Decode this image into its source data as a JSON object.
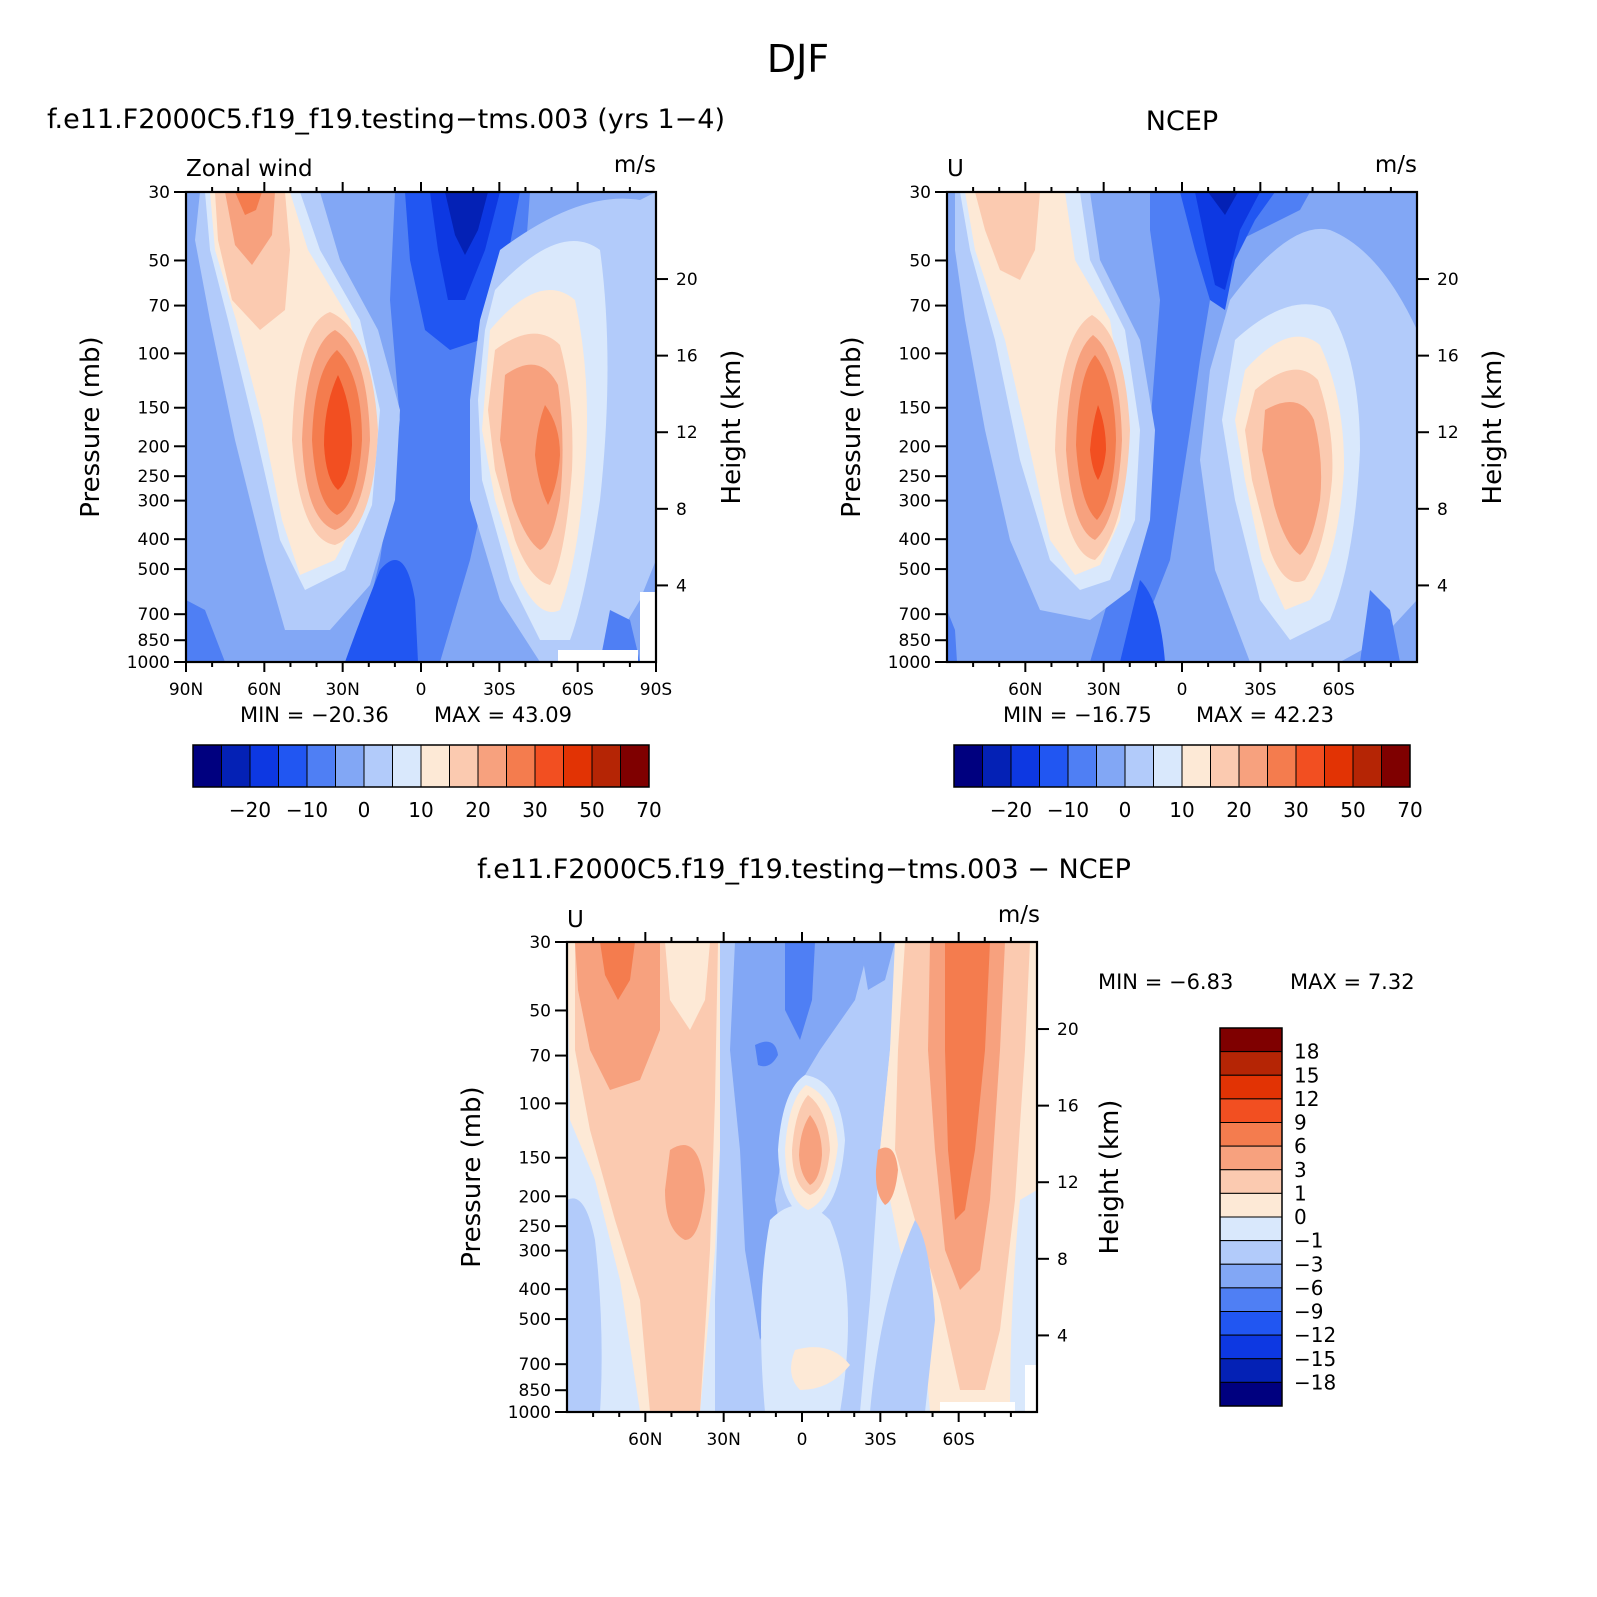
{
  "figure": {
    "title": "DJF"
  },
  "chart_data": [
    {
      "type": "heatmap",
      "panel": "model",
      "title": "f.e11.F2000C5.f19_f19.testing−tms.003 (yrs 1−4)",
      "left_label": "Zonal wind",
      "units": "m/s",
      "ylabel": "Pressure (mb)",
      "ylabel_right": "Height (km)",
      "x_ticklabels": [
        "90N",
        "60N",
        "30N",
        "0",
        "30S",
        "60S",
        "90S"
      ],
      "y_ticklabels": [
        "30",
        "50",
        "70",
        "100",
        "150",
        "200",
        "250",
        "300",
        "400",
        "500",
        "700",
        "850",
        "1000"
      ],
      "height_ticklabels": [
        "20",
        "16",
        "12",
        "8",
        "4"
      ],
      "scale": "log pressure",
      "min_label": "MIN = −20.36",
      "max_label": "MAX = 43.09",
      "min": -20.36,
      "max": 43.09,
      "colorbar_labels": [
        "−20",
        "−10",
        "0",
        "10",
        "20",
        "30",
        "50",
        "70"
      ],
      "colorbar_colors": [
        "#00007f",
        "#0421b5",
        "#0d38e2",
        "#2156f2",
        "#4f7ff4",
        "#82a7f5",
        "#b2cbfa",
        "#d9e8fc",
        "#fde9d6",
        "#fbcab0",
        "#f7a17e",
        "#f47c4e",
        "#f24f21",
        "#e23304",
        "#b52505",
        "#7f0000"
      ],
      "features": [
        {
          "name": "northern subtropical jet maximum",
          "lat": "30N",
          "pressure_mb": 200,
          "value": 43.09
        },
        {
          "name": "southern subtropical jet maximum",
          "lat": "45S",
          "pressure_mb": 200,
          "value": 35
        },
        {
          "name": "equatorial easterlies minimum",
          "lat": "15S",
          "pressure_mb": 30,
          "value": -20.36
        }
      ]
    },
    {
      "type": "heatmap",
      "panel": "obs",
      "title": "NCEP",
      "left_label": "U",
      "units": "m/s",
      "ylabel": "Pressure (mb)",
      "ylabel_right": "Height (km)",
      "x_ticklabels": [
        "60N",
        "30N",
        "0",
        "30S",
        "60S"
      ],
      "y_ticklabels": [
        "30",
        "50",
        "70",
        "100",
        "150",
        "200",
        "250",
        "300",
        "400",
        "500",
        "700",
        "850",
        "1000"
      ],
      "height_ticklabels": [
        "20",
        "16",
        "12",
        "8",
        "4"
      ],
      "scale": "log pressure",
      "min_label": "MIN = −16.75",
      "max_label": "MAX = 42.23",
      "min": -16.75,
      "max": 42.23,
      "colorbar_labels": [
        "−20",
        "−10",
        "0",
        "10",
        "20",
        "30",
        "50",
        "70"
      ],
      "colorbar_colors": [
        "#00007f",
        "#0421b5",
        "#0d38e2",
        "#2156f2",
        "#4f7ff4",
        "#82a7f5",
        "#b2cbfa",
        "#d9e8fc",
        "#fde9d6",
        "#fbcab0",
        "#f7a17e",
        "#f47c4e",
        "#f24f21",
        "#e23304",
        "#b52505",
        "#7f0000"
      ],
      "features": [
        {
          "name": "northern subtropical jet maximum",
          "lat": "30N",
          "pressure_mb": 200,
          "value": 42.23
        },
        {
          "name": "southern subtropical jet maximum",
          "lat": "45S",
          "pressure_mb": 200,
          "value": 30
        },
        {
          "name": "equatorial easterlies minimum",
          "lat": "15S",
          "pressure_mb": 30,
          "value": -16.75
        }
      ]
    },
    {
      "type": "heatmap",
      "panel": "diff",
      "title": "f.e11.F2000C5.f19_f19.testing−tms.003 − NCEP",
      "left_label": "U",
      "units": "m/s",
      "ylabel": "Pressure (mb)",
      "ylabel_right": "Height (km)",
      "x_ticklabels": [
        "60N",
        "30N",
        "0",
        "30S",
        "60S"
      ],
      "y_ticklabels": [
        "30",
        "50",
        "70",
        "100",
        "150",
        "200",
        "250",
        "300",
        "400",
        "500",
        "700",
        "850",
        "1000"
      ],
      "height_ticklabels": [
        "20",
        "16",
        "12",
        "8",
        "4"
      ],
      "scale": "log pressure",
      "min_label": "MIN = −6.83",
      "max_label": "MAX = 7.32",
      "min": -6.83,
      "max": 7.32,
      "colorbar_labels": [
        "18",
        "15",
        "12",
        "9",
        "6",
        "3",
        "1",
        "0",
        "−1",
        "−3",
        "−6",
        "−9",
        "−12",
        "−15",
        "−18"
      ],
      "colorbar_colors": [
        "#7f0000",
        "#b52505",
        "#e23304",
        "#f24f21",
        "#f47c4e",
        "#f7a17e",
        "#fbcab0",
        "#fde9d6",
        "#d9e8fc",
        "#b2cbfa",
        "#82a7f5",
        "#4f7ff4",
        "#2156f2",
        "#0d38e2",
        "#0421b5",
        "#00007f"
      ],
      "features": [
        {
          "name": "positive bias at 60S",
          "lat": "60S",
          "pressure_mb": 100,
          "value": 7.32
        },
        {
          "name": "negative bias near 15N upper levels",
          "lat": "15N",
          "pressure_mb": 70,
          "value": -6.83
        },
        {
          "name": "positive bias over equator",
          "lat": "0",
          "pressure_mb": 150,
          "value": 6
        }
      ]
    }
  ]
}
